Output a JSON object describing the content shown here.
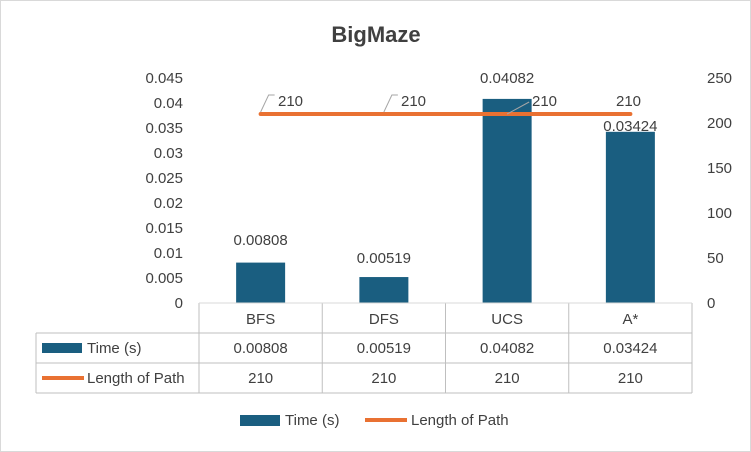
{
  "chart_data": {
    "type": "bar",
    "title": "BigMaze",
    "categories": [
      "BFS",
      "DFS",
      "UCS",
      "A*"
    ],
    "series": [
      {
        "name": "Time (s)",
        "type": "bar",
        "axis": "left",
        "color": "#1a5e80",
        "values": [
          0.00808,
          0.00519,
          0.04082,
          0.03424
        ],
        "labels": [
          "0.00808",
          "0.00519",
          "0.04082",
          "0.03424"
        ]
      },
      {
        "name": "Length of Path",
        "type": "line",
        "axis": "right",
        "color": "#e97132",
        "values": [
          210,
          210,
          210,
          210
        ],
        "labels": [
          "210",
          "210",
          "210",
          "210"
        ]
      }
    ],
    "ylim_left": [
      0,
      0.045
    ],
    "yticks_left": [
      "0",
      "0.005",
      "0.01",
      "0.015",
      "0.02",
      "0.025",
      "0.03",
      "0.035",
      "0.04",
      "0.045"
    ],
    "ylim_right": [
      0,
      250
    ],
    "yticks_right": [
      "0",
      "50",
      "100",
      "150",
      "200",
      "250"
    ],
    "data_table": {
      "rows": [
        {
          "series": "Time (s)",
          "cells": [
            "0.00808",
            "0.00519",
            "0.04082",
            "0.03424"
          ]
        },
        {
          "series": "Length of Path",
          "cells": [
            "210",
            "210",
            "210",
            "210"
          ]
        }
      ]
    },
    "legend": [
      "Time (s)",
      "Length of Path"
    ],
    "legend_position": "bottom",
    "grid": false
  }
}
